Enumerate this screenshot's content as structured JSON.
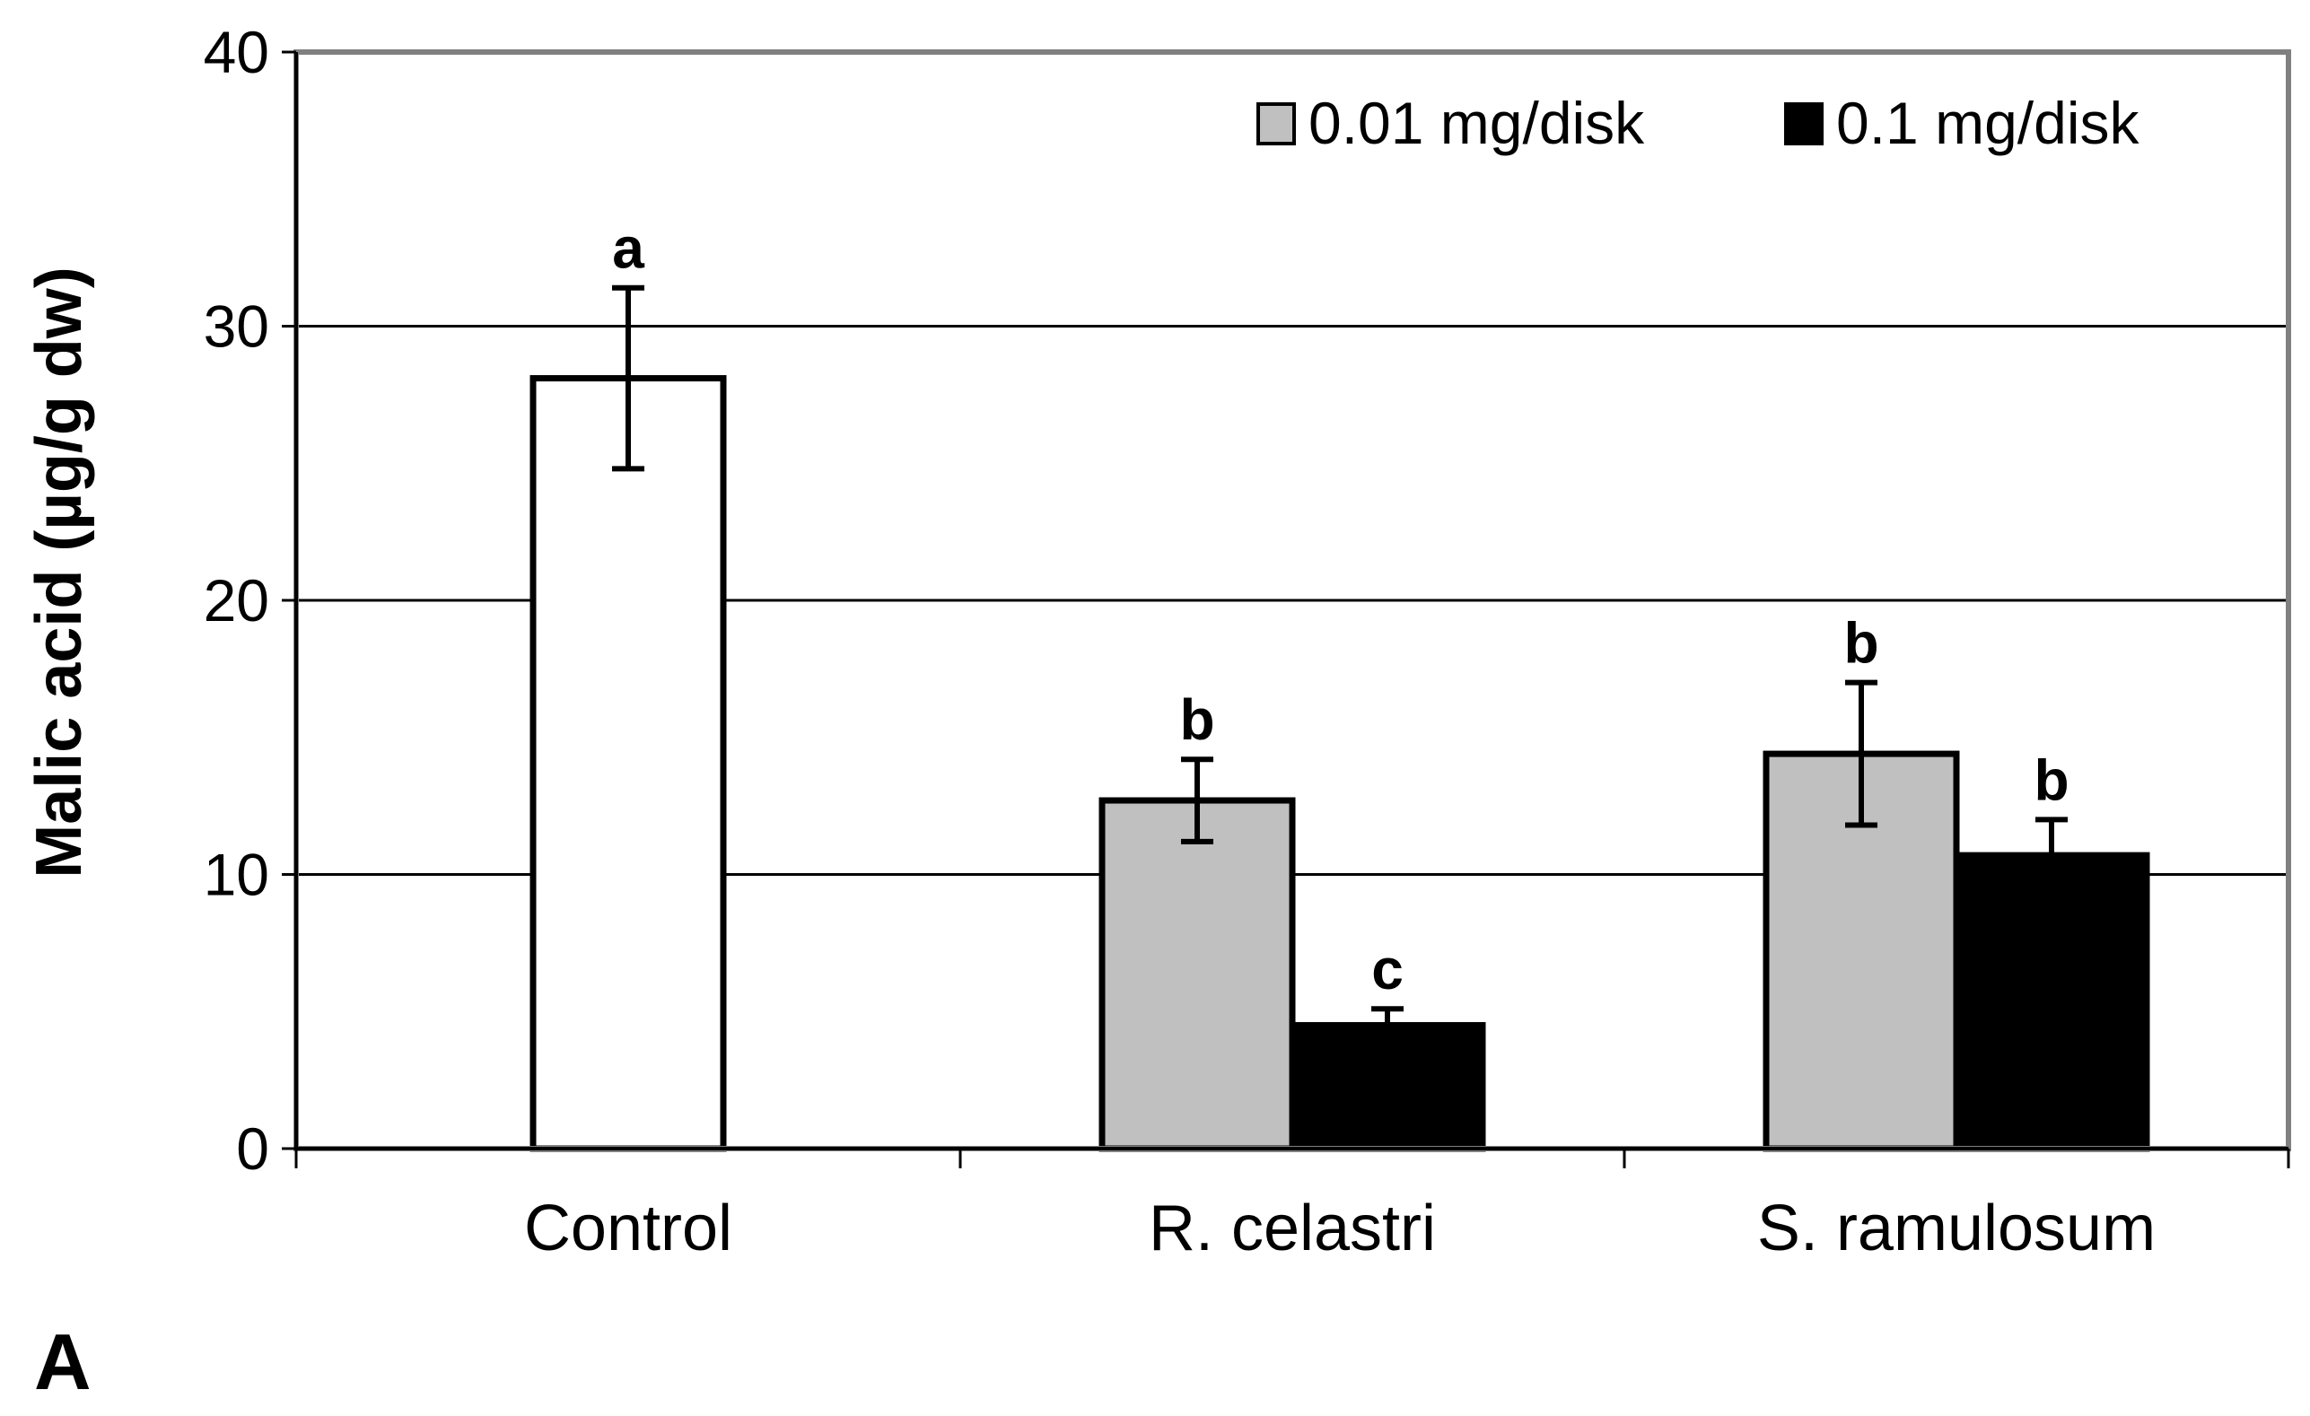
{
  "chart_data": {
    "type": "bar",
    "title": "",
    "panel_label": "A",
    "xlabel": "",
    "ylabel": "Malic acid (µg/g dw)",
    "ylim": [
      0,
      40
    ],
    "yticks": [
      0,
      10,
      20,
      30,
      40
    ],
    "grid": true,
    "legend_position": "top-right",
    "categories": [
      "Control",
      "R. celastri",
      "S. ramulosum"
    ],
    "series": [
      {
        "name": "Control",
        "in_legend": false,
        "color": "#ffffff",
        "points": [
          {
            "category": "Control",
            "value": 28.1,
            "error": 3.3,
            "sig": "a"
          }
        ]
      },
      {
        "name": "0.01 mg/disk",
        "in_legend": true,
        "color": "#c0c0c0",
        "points": [
          {
            "category": "R. celastri",
            "value": 12.7,
            "error": 1.5,
            "sig": "b"
          },
          {
            "category": "S. ramulosum",
            "value": 14.4,
            "error": 2.6,
            "sig": "b"
          }
        ]
      },
      {
        "name": "0.1 mg/disk",
        "in_legend": true,
        "color": "#000000",
        "points": [
          {
            "category": "R. celastri",
            "value": 4.5,
            "error": 0.6,
            "sig": "c"
          },
          {
            "category": "S. ramulosum",
            "value": 10.7,
            "error": 1.3,
            "sig": "b"
          }
        ]
      }
    ]
  }
}
